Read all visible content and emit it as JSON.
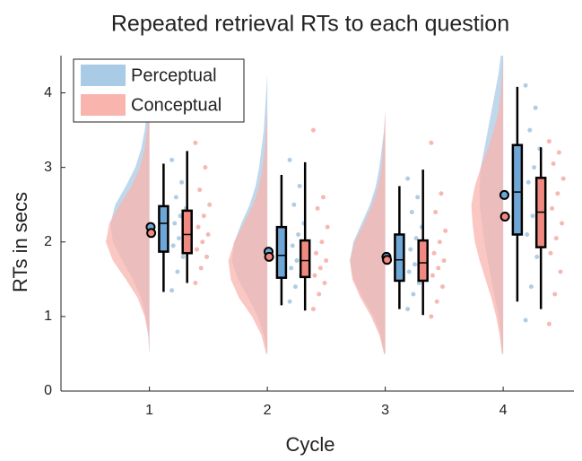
{
  "chart_data": {
    "type": "raincloud",
    "title": "Repeated retrieval RTs to each question",
    "xlabel": "Cycle",
    "ylabel": "RTs in secs",
    "xlim": [
      0.25,
      4.6
    ],
    "xticks": [
      1,
      2,
      3,
      4
    ],
    "ylim": [
      0,
      4.5
    ],
    "yticks": [
      0,
      1,
      2,
      3,
      4
    ],
    "legend": "upper left",
    "density_y": [
      0.5,
      0.75,
      1,
      1.25,
      1.5,
      1.75,
      2,
      2.25,
      2.5,
      2.75,
      3,
      3.25,
      3.5,
      3.75,
      4,
      4.25,
      4.5
    ],
    "series": [
      {
        "name": "Perceptual",
        "color": "#a9cbe6",
        "box_color": "#6ea7d6",
        "point_color": "#8fb8dc",
        "mean": [
          2.2,
          1.87,
          1.8,
          2.63
        ],
        "q1": [
          1.87,
          1.52,
          1.48,
          2.1
        ],
        "median": [
          2.25,
          1.82,
          1.76,
          2.67
        ],
        "q3": [
          2.48,
          2.2,
          2.1,
          3.3
        ],
        "whisker_low": [
          1.33,
          1.15,
          1.1,
          1.2
        ],
        "whisker_high": [
          3.05,
          2.9,
          2.75,
          4.08
        ],
        "density": [
          [
            0,
            0.01,
            0.03,
            0.07,
            0.14,
            0.23,
            0.31,
            0.33,
            0.29,
            0.2,
            0.12,
            0.07,
            0.04,
            0.02,
            0.01,
            0,
            0
          ],
          [
            0,
            0.03,
            0.08,
            0.16,
            0.25,
            0.3,
            0.28,
            0.22,
            0.15,
            0.1,
            0.07,
            0.05,
            0.03,
            0.02,
            0.01,
            0,
            0
          ],
          [
            0.01,
            0.04,
            0.1,
            0.19,
            0.27,
            0.3,
            0.27,
            0.2,
            0.13,
            0.08,
            0.05,
            0.03,
            0.01,
            0,
            0,
            0,
            0
          ],
          [
            0.01,
            0.02,
            0.04,
            0.07,
            0.1,
            0.13,
            0.16,
            0.18,
            0.2,
            0.2,
            0.19,
            0.16,
            0.13,
            0.1,
            0.07,
            0.04,
            0.02
          ]
        ],
        "points": [
          [
            1.35,
            1.6,
            1.8,
            1.95,
            2.05,
            2.15,
            2.25,
            2.35,
            2.45,
            2.6,
            2.8,
            3.1
          ],
          [
            1.2,
            1.4,
            1.55,
            1.65,
            1.75,
            1.85,
            1.95,
            2.1,
            2.25,
            2.5,
            2.75,
            3.1
          ],
          [
            1.1,
            1.3,
            1.45,
            1.6,
            1.7,
            1.8,
            1.9,
            2.05,
            2.2,
            2.4,
            2.6,
            2.85
          ],
          [
            0.95,
            1.4,
            1.8,
            2.1,
            2.35,
            2.6,
            2.8,
            3.0,
            3.25,
            3.5,
            3.8,
            4.1
          ]
        ]
      },
      {
        "name": "Conceptual",
        "color": "#f9b4ae",
        "box_color": "#f08a80",
        "point_color": "#f29a92",
        "mean": [
          2.12,
          1.8,
          1.76,
          2.34
        ],
        "q1": [
          1.85,
          1.53,
          1.48,
          1.93
        ],
        "median": [
          2.1,
          1.75,
          1.72,
          2.4
        ],
        "q3": [
          2.42,
          2.02,
          2.02,
          2.86
        ],
        "whisker_low": [
          1.45,
          1.08,
          1.02,
          1.1
        ],
        "whisker_high": [
          3.22,
          3.07,
          2.97,
          3.27
        ],
        "density": [
          [
            0,
            0.01,
            0.04,
            0.1,
            0.2,
            0.31,
            0.37,
            0.34,
            0.25,
            0.15,
            0.08,
            0.04,
            0.02,
            0.01,
            0,
            0,
            0
          ],
          [
            0.01,
            0.05,
            0.13,
            0.24,
            0.31,
            0.33,
            0.28,
            0.2,
            0.12,
            0.07,
            0.04,
            0.02,
            0.01,
            0,
            0,
            0,
            0
          ],
          [
            0.01,
            0.05,
            0.12,
            0.21,
            0.28,
            0.3,
            0.26,
            0.18,
            0.11,
            0.06,
            0.03,
            0.02,
            0.01,
            0,
            0,
            0,
            0
          ],
          [
            0.01,
            0.03,
            0.06,
            0.1,
            0.15,
            0.2,
            0.24,
            0.26,
            0.27,
            0.24,
            0.19,
            0.13,
            0.08,
            0.04,
            0.02,
            0.01,
            0
          ]
        ],
        "points": [
          [
            1.45,
            1.65,
            1.8,
            1.9,
            2.0,
            2.1,
            2.2,
            2.35,
            2.5,
            2.7,
            3.0,
            3.33
          ],
          [
            1.1,
            1.3,
            1.45,
            1.55,
            1.65,
            1.75,
            1.85,
            2.0,
            2.2,
            2.45,
            2.6,
            3.5
          ],
          [
            1.0,
            1.2,
            1.4,
            1.55,
            1.65,
            1.75,
            1.85,
            2.0,
            2.15,
            2.4,
            2.65,
            3.33
          ],
          [
            0.9,
            1.3,
            1.6,
            1.85,
            2.05,
            2.25,
            2.45,
            2.65,
            2.85,
            3.05,
            3.2,
            3.35
          ]
        ]
      }
    ]
  }
}
